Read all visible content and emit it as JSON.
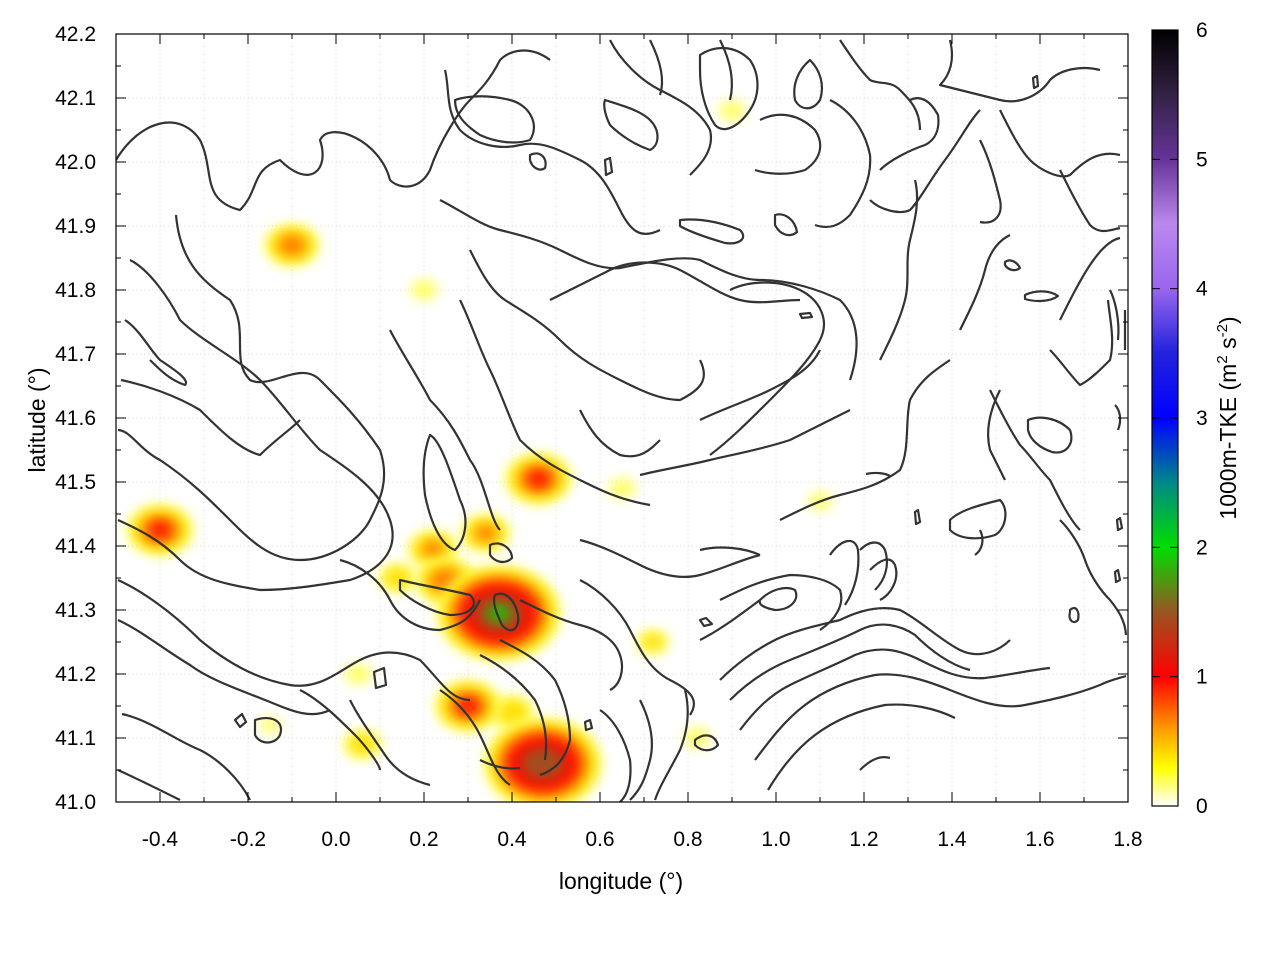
{
  "chart_data": {
    "type": "heatmap",
    "title": "",
    "xlabel": "longitude (°)",
    "ylabel": "latitude (°)",
    "xlim": [
      -0.5,
      1.8
    ],
    "ylim": [
      41.0,
      42.2
    ],
    "grid": true,
    "x_ticks": [
      "-0.4",
      "-0.2",
      "0.0",
      "0.2",
      "0.4",
      "0.6",
      "0.8",
      "1.0",
      "1.2",
      "1.4",
      "1.6",
      "1.8"
    ],
    "y_ticks": [
      "41.0",
      "41.1",
      "41.2",
      "41.3",
      "41.4",
      "41.5",
      "41.6",
      "41.7",
      "41.8",
      "41.9",
      "42.0",
      "42.1",
      "42.2"
    ],
    "colorbar": {
      "label": "1000m-TKE (m",
      "label_sup1": "2",
      "label_mid": " s",
      "label_sup2": "-2",
      "label_end": ")",
      "range": [
        0,
        6
      ],
      "ticks": [
        "0",
        "1",
        "2",
        "3",
        "4",
        "5",
        "6"
      ],
      "stops": [
        {
          "value": 0,
          "color": "#ffffff"
        },
        {
          "value": 0.3,
          "color": "#ffff00"
        },
        {
          "value": 0.6,
          "color": "#ff9900"
        },
        {
          "value": 1.0,
          "color": "#ff0000"
        },
        {
          "value": 1.5,
          "color": "#995522"
        },
        {
          "value": 2.0,
          "color": "#00dd00"
        },
        {
          "value": 2.5,
          "color": "#008888"
        },
        {
          "value": 3.0,
          "color": "#0000ff"
        },
        {
          "value": 3.5,
          "color": "#2222dd"
        },
        {
          "value": 4.0,
          "color": "#9966ee"
        },
        {
          "value": 4.5,
          "color": "#bb88ee"
        },
        {
          "value": 5.0,
          "color": "#663399"
        },
        {
          "value": 5.5,
          "color": "#332244"
        },
        {
          "value": 6.0,
          "color": "#000000"
        }
      ]
    },
    "hotspots": [
      {
        "lon": 0.37,
        "lat": 41.295,
        "value": 2.0
      },
      {
        "lon": 0.47,
        "lat": 41.06,
        "value": 1.9
      },
      {
        "lon": -0.4,
        "lat": 41.425,
        "value": 1.0
      },
      {
        "lon": 0.46,
        "lat": 41.505,
        "value": 1.0
      },
      {
        "lon": 0.3,
        "lat": 41.15,
        "value": 1.0
      },
      {
        "lon": 0.25,
        "lat": 41.345,
        "value": 0.9
      },
      {
        "lon": -0.1,
        "lat": 41.87,
        "value": 0.8
      },
      {
        "lon": 0.22,
        "lat": 41.395,
        "value": 0.7
      },
      {
        "lon": 0.34,
        "lat": 41.42,
        "value": 0.7
      },
      {
        "lon": 0.4,
        "lat": 41.14,
        "value": 0.6
      },
      {
        "lon": 0.06,
        "lat": 41.09,
        "value": 0.5
      },
      {
        "lon": 0.72,
        "lat": 41.25,
        "value": 0.4
      },
      {
        "lon": 0.14,
        "lat": 41.35,
        "value": 0.5
      },
      {
        "lon": 0.05,
        "lat": 41.2,
        "value": 0.3
      },
      {
        "lon": 0.2,
        "lat": 41.8,
        "value": 0.3
      },
      {
        "lon": 0.65,
        "lat": 41.49,
        "value": 0.3
      },
      {
        "lon": 1.1,
        "lat": 41.47,
        "value": 0.25
      },
      {
        "lon": 0.82,
        "lat": 41.1,
        "value": 0.3
      },
      {
        "lon": 0.9,
        "lat": 42.08,
        "value": 0.3
      },
      {
        "lon": -0.15,
        "lat": 41.12,
        "value": 0.2
      }
    ]
  }
}
